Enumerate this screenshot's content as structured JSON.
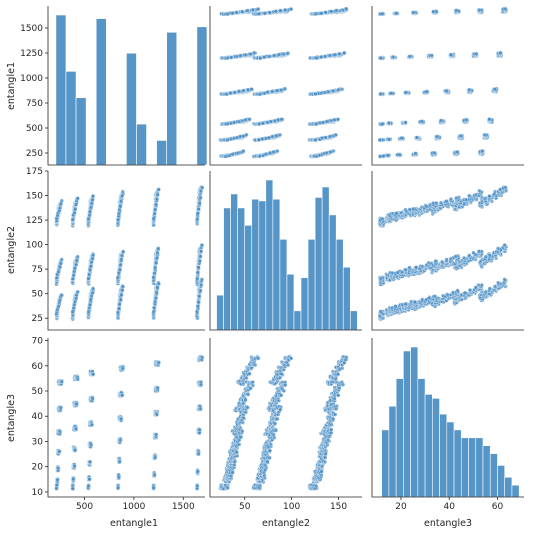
{
  "chart_data": {
    "type": "pairplot",
    "variables": [
      "entangle1",
      "entangle2",
      "entangle3"
    ],
    "point_color": "#4c8fc4",
    "point_edge_color": "#ffffff",
    "hist_color": "#4c8fc4",
    "grid": false,
    "axes": {
      "entangle1": {
        "lim": [
          130,
          1720
        ],
        "ticks": [
          250,
          500,
          750,
          1000,
          1250,
          1500
        ],
        "xticks": [
          500,
          1000,
          1500
        ]
      },
      "entangle2": {
        "lim": [
          13,
          175
        ],
        "ticks": [
          25,
          50,
          75,
          100,
          125,
          150,
          175
        ],
        "xticks": [
          50,
          100,
          150
        ]
      },
      "entangle3": {
        "lim": [
          8,
          71
        ],
        "ticks": [
          10,
          20,
          30,
          40,
          50,
          60,
          70
        ],
        "xticks": [
          20,
          40,
          60
        ]
      }
    },
    "entangle1_levels": [
      218,
      380,
      540,
      840,
      1200,
      1640
    ],
    "entangle2_bases": [
      25,
      60,
      120
    ],
    "histograms": {
      "entangle1": {
        "bin_edges": [
          210,
          312,
          414,
          516,
          618,
          720,
          822,
          924,
          1026,
          1128,
          1230,
          1332,
          1434,
          1536,
          1638,
          1740
        ],
        "counts": [
          1650,
          1030,
          740,
          0,
          1610,
          0,
          0,
          1230,
          450,
          0,
          270,
          1460,
          0,
          0,
          1520
        ]
      },
      "entangle2": {
        "bin_edges": [
          20,
          27.5,
          35,
          42.5,
          50,
          57.5,
          65,
          72.5,
          80,
          87.5,
          95,
          102.5,
          110,
          117.5,
          125,
          132.5,
          140,
          147.5,
          155,
          162.5,
          170
        ],
        "counts": [
          20,
          70,
          78,
          70,
          60,
          75,
          74,
          86,
          75,
          52,
          32,
          11,
          30,
          52,
          76,
          82,
          66,
          52,
          36,
          11
        ]
      },
      "entangle3": {
        "bin_edges": [
          12,
          15,
          18,
          21,
          24,
          27,
          30,
          33,
          36,
          39,
          42,
          45,
          48,
          51,
          54,
          57,
          60,
          63,
          66,
          69
        ],
        "counts": [
          17,
          23,
          30,
          37,
          38,
          30,
          26,
          25,
          21,
          19,
          17,
          15,
          15,
          15,
          13,
          11,
          8,
          5,
          3
        ]
      }
    }
  }
}
